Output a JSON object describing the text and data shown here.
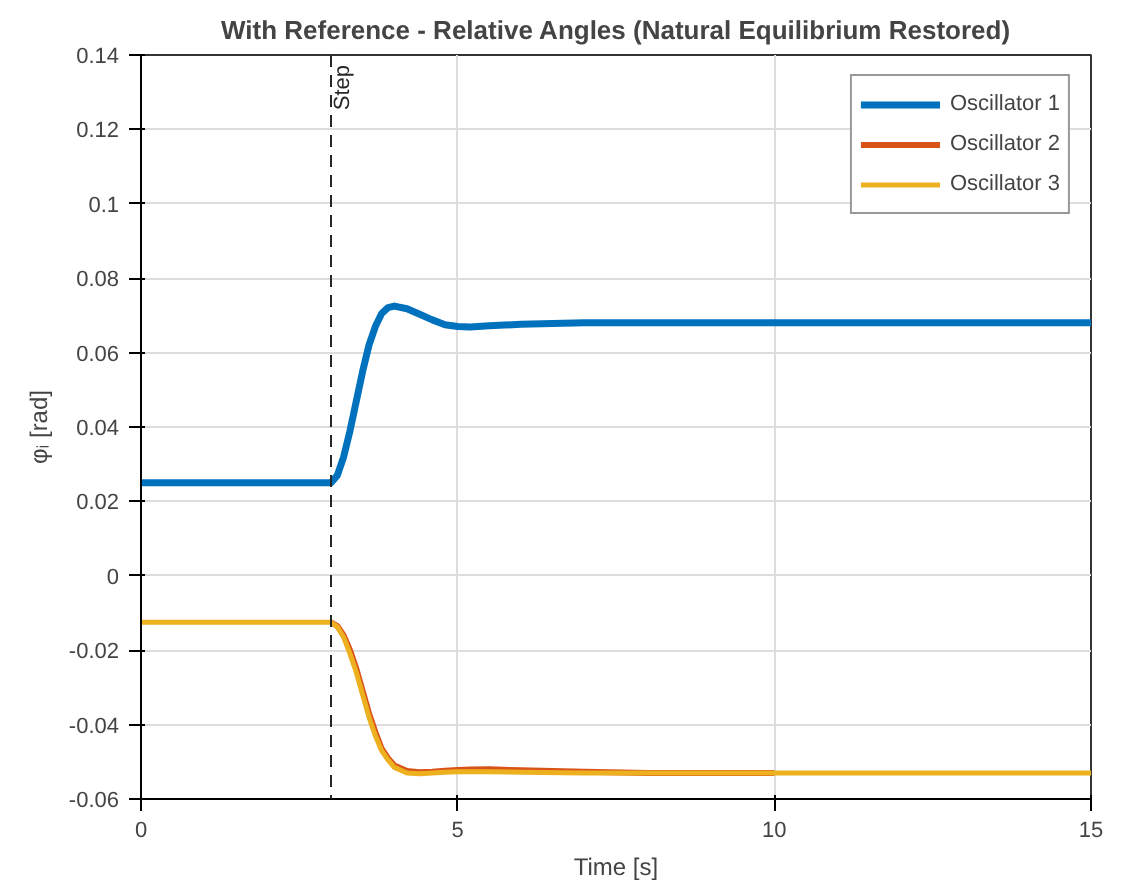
{
  "chart_data": {
    "type": "line",
    "title": "With Reference - Relative Angles (Natural Equilibrium Restored)",
    "xlabel": "Time [s]",
    "ylabel": "φᵢ [rad]",
    "x": [
      0,
      1,
      2,
      3,
      3.1,
      3.2,
      3.3,
      3.4,
      3.5,
      3.6,
      3.7,
      3.8,
      3.9,
      4.0,
      4.2,
      4.4,
      4.6,
      4.8,
      5.0,
      5.2,
      5.5,
      6,
      7,
      8,
      10,
      12,
      15
    ],
    "series": [
      {
        "name": "Oscillator 1",
        "color": "#0072bd",
        "values": [
          0.025,
          0.025,
          0.025,
          0.025,
          0.027,
          0.032,
          0.039,
          0.047,
          0.055,
          0.062,
          0.067,
          0.0705,
          0.0721,
          0.0725,
          0.0718,
          0.0703,
          0.0688,
          0.0675,
          0.067,
          0.0669,
          0.0672,
          0.0676,
          0.068,
          0.068,
          0.068,
          0.068,
          0.068
        ]
      },
      {
        "name": "Oscillator 2",
        "color": "#d95319",
        "values": [
          null,
          null,
          null,
          -0.0125,
          -0.0135,
          -0.016,
          -0.02,
          -0.025,
          -0.031,
          -0.037,
          -0.042,
          -0.0465,
          -0.049,
          -0.051,
          -0.0525,
          -0.0528,
          -0.0527,
          -0.0524,
          -0.0522,
          -0.0521,
          -0.052,
          -0.0523,
          -0.0527,
          -0.053,
          -0.053,
          null,
          null
        ]
      },
      {
        "name": "Oscillator 3",
        "color": "#edb120",
        "values": [
          -0.0125,
          -0.0125,
          -0.0125,
          -0.0125,
          -0.0137,
          -0.0165,
          -0.021,
          -0.026,
          -0.032,
          -0.038,
          -0.043,
          -0.047,
          -0.0495,
          -0.0515,
          -0.053,
          -0.0532,
          -0.053,
          -0.0528,
          -0.0527,
          -0.0527,
          -0.0527,
          -0.0528,
          -0.053,
          -0.053,
          -0.053,
          -0.053,
          -0.053
        ]
      }
    ],
    "xlim": [
      0,
      15
    ],
    "xticks": [
      0,
      5,
      10,
      15
    ],
    "ylim": [
      -0.06,
      0.14
    ],
    "yticks": [
      -0.06,
      -0.04,
      -0.02,
      0,
      0.02,
      0.04,
      0.06,
      0.08,
      0.1,
      0.12,
      0.14
    ],
    "ref_lines": [
      {
        "axis": "x",
        "value": 3,
        "label": "Step",
        "color": "#262626",
        "line_style": "dashed"
      }
    ],
    "grid": true,
    "legend": "top right",
    "line_style": "solid"
  }
}
